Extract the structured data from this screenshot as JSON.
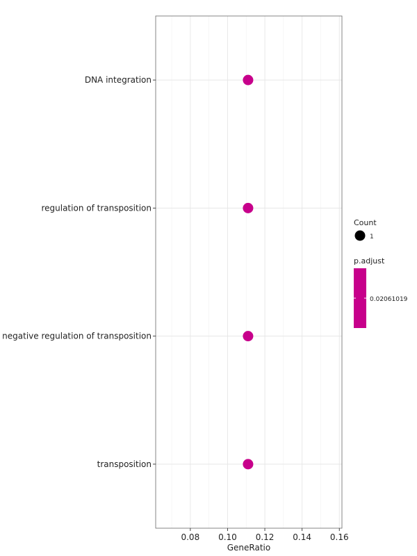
{
  "chart_data": {
    "type": "scatter",
    "xlabel": "GeneRatio",
    "ylabel": "",
    "xlim": [
      0.06,
      0.16
    ],
    "x_ticks": [
      "0.08",
      "0.10",
      "0.12",
      "0.14",
      "0.16"
    ],
    "x_tick_values": [
      0.08,
      0.1,
      0.12,
      0.14,
      0.16
    ],
    "categories": [
      "DNA integration",
      "regulation of transposition",
      "negative regulation of transposition",
      "transposition"
    ],
    "x": [
      0.111,
      0.111,
      0.111,
      0.111
    ],
    "count": [
      1,
      1,
      1,
      1
    ],
    "p_adjust": [
      0.02061019,
      0.02061019,
      0.02061019,
      0.02061019
    ],
    "point_color": "#c7008b",
    "grid": true,
    "legend_position": "right",
    "legend": {
      "count_title": "Count",
      "count_label": "1",
      "padjust_title": "p.adjust",
      "padjust_label": "0.02061019",
      "padjust_color": "#c7008b"
    }
  }
}
